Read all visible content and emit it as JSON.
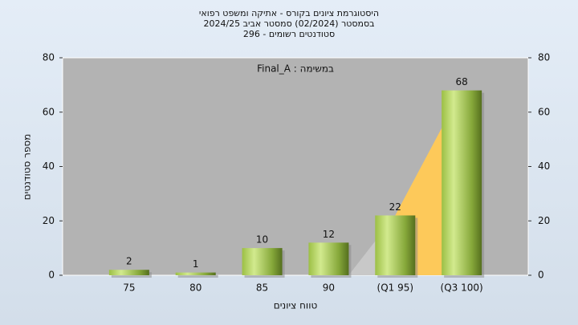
{
  "chart_data": {
    "type": "bar",
    "title_lines": [
      "היסטוגרמת ציונים בקורס - אתיקה ומשפט רפואי",
      "בסמסטר (02/2024) סמסטר אביב 2024/25",
      "סטודנטים רשומים - 296"
    ],
    "annotation": "במשימה : Final_A",
    "y_label": "מספר סטודנטים",
    "x_label": "טווח ציונים",
    "categories": [
      "75",
      "80",
      "85",
      "90",
      "(Q1 95)",
      "(Q3 100)"
    ],
    "values": [
      2,
      1,
      10,
      12,
      22,
      68
    ],
    "ylim": [
      0,
      80
    ],
    "yticks": [
      0,
      20,
      40,
      60,
      80
    ],
    "y2lim": [
      0,
      80
    ],
    "y2ticks": [
      0,
      20,
      40,
      60,
      80
    ],
    "grid": false
  }
}
